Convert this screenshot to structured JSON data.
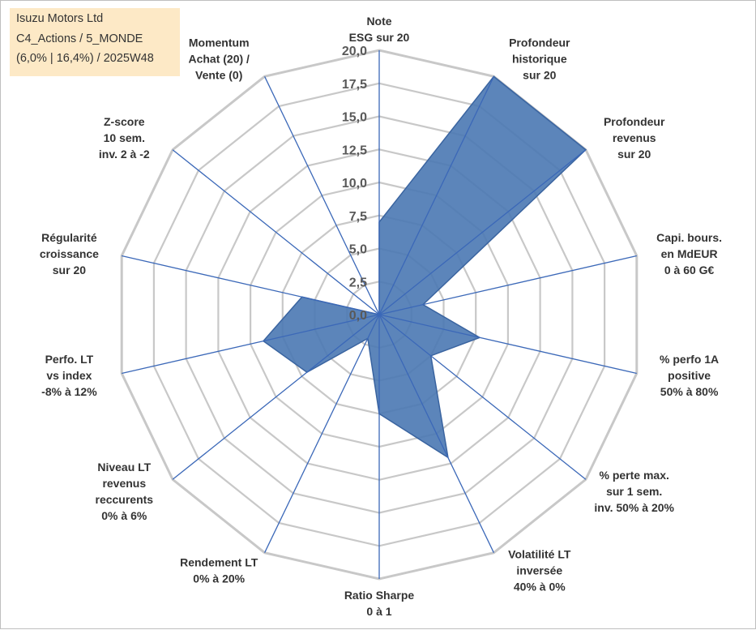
{
  "title_box": {
    "line1": "Isuzu Motors Ltd",
    "line2": "C4_Actions / 5_MONDE",
    "line3": "(6,0% | 16,4%) / 2025W48"
  },
  "colors": {
    "fill": "#4a78b3",
    "outline": "#3a64a0",
    "grid": "#c8c8c8",
    "spoke": "#3b68b8",
    "title_bg": "#fde9c6"
  },
  "chart_data": {
    "type": "radar",
    "rmax": 20,
    "ticks": [
      "0,0",
      "2,5",
      "5,0",
      "7,5",
      "10,0",
      "12,5",
      "15,0",
      "17,5",
      "20,0"
    ],
    "axes": [
      {
        "label": [
          "Note",
          "ESG sur 20"
        ],
        "value": 7.0
      },
      {
        "label": [
          "Profondeur",
          "historique",
          "sur 20"
        ],
        "value": 20.0
      },
      {
        "label": [
          "Profondeur",
          "revenus",
          "sur 20"
        ],
        "value": 20.0
      },
      {
        "label": [
          "Capi. bours.",
          "en MdEUR",
          "0 à 60 G€"
        ],
        "value": 3.4
      },
      {
        "label": [
          "% perfo 1A",
          "positive",
          "50% à 80%"
        ],
        "value": 7.8
      },
      {
        "label": [
          "% perte max.",
          "sur 1 sem.",
          "inv. 50% à 20%"
        ],
        "value": 5.0
      },
      {
        "label": [
          "Volatilité LT",
          "inversée",
          "40% à 0%"
        ],
        "value": 12.0
      },
      {
        "label": [
          "Ratio Sharpe",
          "0 à 1"
        ],
        "value": 7.5
      },
      {
        "label": [
          "Rendement LT",
          "0% à 20%"
        ],
        "value": 2.0
      },
      {
        "label": [
          "Niveau LT",
          "revenus",
          "reccurents",
          "0% à 6%"
        ],
        "value": 7.0
      },
      {
        "label": [
          "Perfo. LT",
          "vs index",
          "-8% à 12%"
        ],
        "value": 9.0
      },
      {
        "label": [
          "Régularité",
          "croissance",
          "sur 20"
        ],
        "value": 6.0
      },
      {
        "label": [
          "Z-score",
          "10 sem.",
          "inv. 2 à -2"
        ],
        "value": 0.0
      },
      {
        "label": [
          "Momentum",
          "Achat (20) /",
          "Vente (0)"
        ],
        "value": 0.0
      }
    ]
  }
}
